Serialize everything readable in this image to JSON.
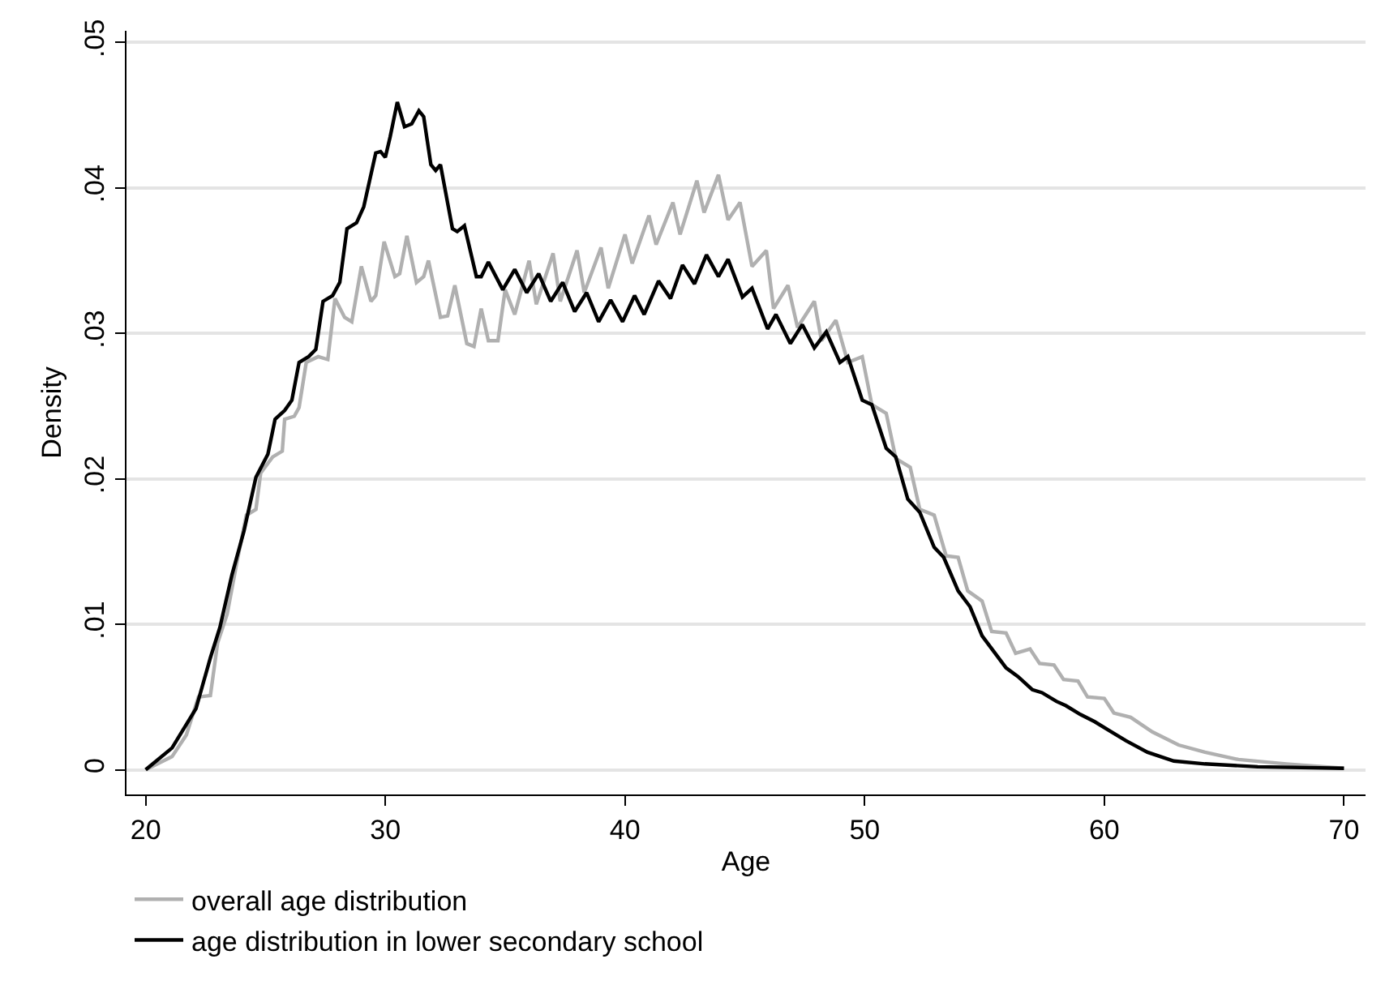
{
  "chart_data": {
    "type": "line",
    "xlabel": "Age",
    "ylabel": "Density",
    "xlim": [
      19.2,
      70.9
    ],
    "ylim": [
      -0.0017,
      0.0508
    ],
    "xticks": [
      20,
      30,
      40,
      50,
      60,
      70
    ],
    "yticks": [
      {
        "value": 0,
        "label": "0"
      },
      {
        "value": 0.01,
        "label": ".01"
      },
      {
        "value": 0.02,
        "label": ".02"
      },
      {
        "value": 0.03,
        "label": ".03"
      },
      {
        "value": 0.04,
        "label": ".04"
      },
      {
        "value": 0.05,
        "label": ".05"
      }
    ],
    "grid": "y",
    "legend": "bottom",
    "marker": "none",
    "line_style": "solid",
    "series": [
      {
        "name": "overall age distribution",
        "color": "#b0b0b0",
        "x": [
          20.0,
          21.1,
          21.7,
          22.2,
          22.7,
          23.0,
          23.4,
          23.8,
          24.2,
          24.6,
          24.8,
          25.3,
          25.7,
          25.8,
          26.2,
          26.4,
          26.7,
          27.2,
          27.6,
          27.9,
          28.3,
          28.6,
          29.0,
          29.4,
          29.6,
          29.95,
          30.4,
          30.6,
          30.9,
          31.3,
          31.6,
          31.8,
          32.3,
          32.6,
          32.9,
          33.4,
          33.7,
          34.0,
          34.3,
          34.7,
          35.0,
          35.4,
          36.0,
          36.3,
          37.0,
          37.3,
          38.0,
          38.3,
          39.0,
          39.3,
          40.0,
          40.3,
          41.0,
          41.3,
          42.0,
          42.3,
          43.0,
          43.3,
          43.9,
          44.3,
          44.8,
          45.3,
          45.9,
          46.2,
          46.8,
          47.2,
          47.9,
          48.2,
          48.8,
          49.3,
          49.9,
          50.3,
          50.9,
          51.3,
          51.9,
          52.3,
          52.9,
          53.4,
          53.9,
          54.3,
          54.9,
          55.3,
          55.9,
          56.3,
          56.9,
          57.3,
          57.9,
          58.3,
          58.9,
          59.3,
          60.0,
          60.4,
          61.1,
          62.0,
          63.1,
          64.2,
          65.6,
          67.6,
          70.0
        ],
        "values": [
          0,
          0.0009,
          0.0024,
          0.005,
          0.0051,
          0.0087,
          0.0107,
          0.0142,
          0.0175,
          0.0179,
          0.0204,
          0.0215,
          0.0219,
          0.0241,
          0.0243,
          0.0249,
          0.028,
          0.0284,
          0.0282,
          0.0324,
          0.0311,
          0.0308,
          0.0346,
          0.0322,
          0.0326,
          0.0363,
          0.0339,
          0.0341,
          0.0367,
          0.0335,
          0.0339,
          0.035,
          0.0311,
          0.0312,
          0.0333,
          0.0293,
          0.0291,
          0.0317,
          0.0295,
          0.0295,
          0.033,
          0.0313,
          0.035,
          0.032,
          0.0355,
          0.0322,
          0.0357,
          0.0328,
          0.0359,
          0.0331,
          0.0368,
          0.0348,
          0.0381,
          0.0361,
          0.039,
          0.0368,
          0.0405,
          0.0383,
          0.0409,
          0.0378,
          0.039,
          0.0346,
          0.0357,
          0.0317,
          0.0333,
          0.0304,
          0.0322,
          0.0295,
          0.0309,
          0.028,
          0.0284,
          0.0251,
          0.0245,
          0.0214,
          0.0208,
          0.0179,
          0.0175,
          0.0147,
          0.0146,
          0.0123,
          0.0116,
          0.0095,
          0.0094,
          0.008,
          0.0083,
          0.0073,
          0.0072,
          0.0062,
          0.0061,
          0.005,
          0.0049,
          0.0039,
          0.0036,
          0.0026,
          0.0017,
          0.0012,
          0.0007,
          0.0004,
          0.0001
        ]
      },
      {
        "name": "age distribution in lower secondary school",
        "color": "#000000",
        "x": [
          20.0,
          21.1,
          22.1,
          22.7,
          23.1,
          23.6,
          24.1,
          24.6,
          25.1,
          25.4,
          25.8,
          26.1,
          26.4,
          26.8,
          27.1,
          27.4,
          27.8,
          28.1,
          28.4,
          28.8,
          29.1,
          29.6,
          29.8,
          30.0,
          30.2,
          30.5,
          30.8,
          31.1,
          31.4,
          31.6,
          31.9,
          32.1,
          32.3,
          32.8,
          33.0,
          33.3,
          33.8,
          34.0,
          34.3,
          34.9,
          35.4,
          35.9,
          36.4,
          36.9,
          37.4,
          37.9,
          38.4,
          38.9,
          39.4,
          39.9,
          40.4,
          40.8,
          41.4,
          41.9,
          42.4,
          42.9,
          43.4,
          43.9,
          44.3,
          44.9,
          45.3,
          45.95,
          46.3,
          46.9,
          47.4,
          47.9,
          48.4,
          48.97,
          49.3,
          49.9,
          50.3,
          50.9,
          51.3,
          51.8,
          52.3,
          52.9,
          53.3,
          53.9,
          54.4,
          54.9,
          55.4,
          55.9,
          56.4,
          57.0,
          57.4,
          58.0,
          58.4,
          59.0,
          59.6,
          60.2,
          60.9,
          61.8,
          62.9,
          64.2,
          66.4,
          70.0
        ],
        "values": [
          0,
          0.0015,
          0.0042,
          0.0077,
          0.0098,
          0.0134,
          0.0164,
          0.0201,
          0.0217,
          0.0241,
          0.0247,
          0.0254,
          0.028,
          0.0284,
          0.0289,
          0.0322,
          0.0326,
          0.0335,
          0.0372,
          0.0376,
          0.0387,
          0.0424,
          0.0425,
          0.0421,
          0.0435,
          0.0459,
          0.0442,
          0.0444,
          0.0453,
          0.0449,
          0.0416,
          0.0412,
          0.0416,
          0.0372,
          0.037,
          0.0374,
          0.0339,
          0.0339,
          0.0349,
          0.033,
          0.0344,
          0.0328,
          0.0341,
          0.0322,
          0.0335,
          0.0315,
          0.0328,
          0.0308,
          0.0323,
          0.0308,
          0.0326,
          0.0313,
          0.0336,
          0.0324,
          0.0347,
          0.0334,
          0.0354,
          0.0339,
          0.0351,
          0.0325,
          0.0331,
          0.0303,
          0.0313,
          0.0293,
          0.0306,
          0.029,
          0.0301,
          0.028,
          0.0284,
          0.0254,
          0.0251,
          0.0221,
          0.0215,
          0.0186,
          0.0177,
          0.0153,
          0.0146,
          0.0123,
          0.0112,
          0.0092,
          0.0081,
          0.007,
          0.0064,
          0.0055,
          0.0053,
          0.0047,
          0.0044,
          0.0038,
          0.0033,
          0.0027,
          0.002,
          0.0012,
          0.0006,
          0.0004,
          0.0002,
          0.0001
        ]
      }
    ]
  }
}
